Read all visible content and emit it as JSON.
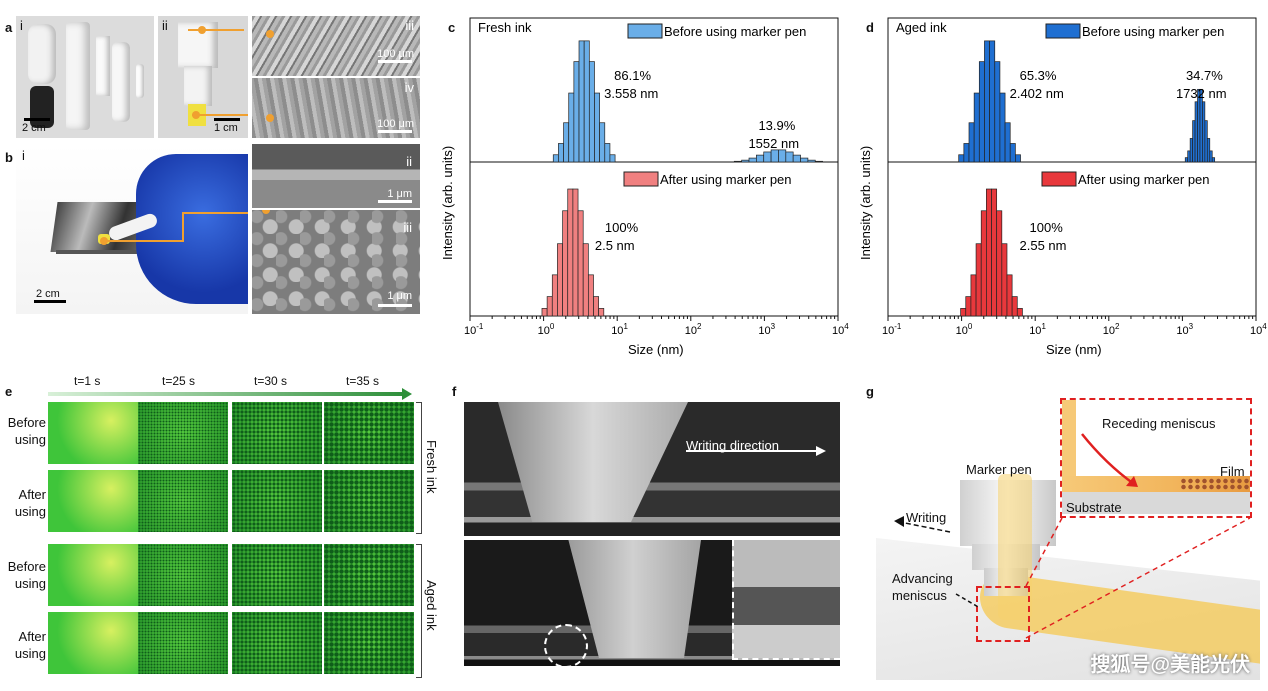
{
  "panel_a": {
    "letter": "a",
    "sub_i": "i",
    "sub_ii": "ii",
    "sub_iii": "iii",
    "sub_iv": "iv",
    "scale_i": "2 cm",
    "scale_ii": "1 cm",
    "scale_iii": "100 μm",
    "scale_iv": "100 μm"
  },
  "panel_b": {
    "letter": "b",
    "sub_i": "i",
    "sub_ii": "ii",
    "sub_iii": "iii",
    "scale_i": "2 cm",
    "scale_ii": "1 μm",
    "scale_iii": "1 μm"
  },
  "chart_data": [
    {
      "panel": "c",
      "type": "bar",
      "title": "Fresh ink",
      "xlabel": "Size (nm)",
      "ylabel": "Intensity (arb. units)",
      "xscale": "log",
      "xlim": [
        0.1,
        10000
      ],
      "xticks": [
        "10^-1",
        "10^0",
        "10^1",
        "10^2",
        "10^3",
        "10^4"
      ],
      "series": [
        {
          "name": "Before using marker pen",
          "color": "#6aaee8",
          "peaks": [
            {
              "mode_nm": 3.558,
              "percent": 86.1,
              "label_pct": "86.1%",
              "label_val": "3.558 nm"
            },
            {
              "mode_nm": 1552,
              "percent": 13.9,
              "label_pct": "13.9%",
              "label_val": "1552 nm"
            }
          ]
        },
        {
          "name": "After using marker pen",
          "color": "#f08080",
          "peaks": [
            {
              "mode_nm": 2.5,
              "percent": 100,
              "label_pct": "100%",
              "label_val": "2.5 nm"
            }
          ]
        }
      ]
    },
    {
      "panel": "d",
      "type": "bar",
      "title": "Aged ink",
      "xlabel": "Size (nm)",
      "ylabel": "Intensity (arb. units)",
      "xscale": "log",
      "xlim": [
        0.1,
        10000
      ],
      "xticks": [
        "10^-1",
        "10^0",
        "10^1",
        "10^2",
        "10^3",
        "10^4"
      ],
      "series": [
        {
          "name": "Before using marker pen",
          "color": "#1f6fd1",
          "peaks": [
            {
              "mode_nm": 2.402,
              "percent": 65.3,
              "label_pct": "65.3%",
              "label_val": "2.402 nm"
            },
            {
              "mode_nm": 1732,
              "percent": 34.7,
              "label_pct": "34.7%",
              "label_val": "1732 nm"
            }
          ]
        },
        {
          "name": "After using marker pen",
          "color": "#e8383c",
          "peaks": [
            {
              "mode_nm": 2.55,
              "percent": 100,
              "label_pct": "100%",
              "label_val": "2.55 nm"
            }
          ]
        }
      ]
    }
  ],
  "panel_e": {
    "letter": "e",
    "times": [
      "t=1 s",
      "t=25 s",
      "t=30 s",
      "t=35 s"
    ],
    "rows": [
      "Before\nusing",
      "After\nusing",
      "Before\nusing",
      "After\nusing"
    ],
    "fresh": "Fresh ink",
    "aged": "Aged ink"
  },
  "panel_f": {
    "letter": "f",
    "direction": "Writing direction"
  },
  "panel_g": {
    "letter": "g",
    "receding": "Receding meniscus",
    "film": "Film",
    "marker_pen": "Marker pen",
    "substrate": "Substrate",
    "writing": "Writing",
    "advancing": "Advancing\nmeniscus"
  },
  "watermark": "搜狐号@美能光伏",
  "colors": {
    "fresh_before": "#6aaee8",
    "fresh_after": "#f08080",
    "aged_before": "#1f6fd1",
    "aged_after": "#e8383c",
    "orange_callout": "#f0a030",
    "green_tile": "#3fc53a"
  }
}
